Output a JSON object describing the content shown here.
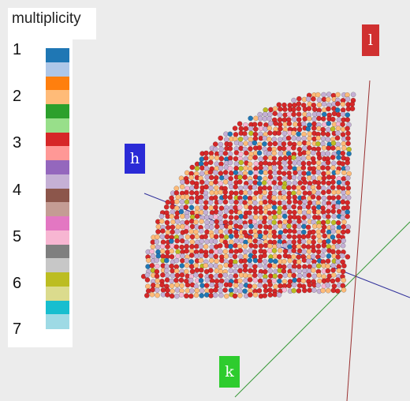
{
  "legend": {
    "title": "multiplicity",
    "numbers": [
      "1",
      "2",
      "3",
      "4",
      "5",
      "6",
      "7"
    ],
    "swatches": [
      "#1f77b4",
      "#aec7e8",
      "#ff7f0e",
      "#ffbb78",
      "#2ca02c",
      "#98df8a",
      "#d62728",
      "#ff9896",
      "#9467bd",
      "#c5b0d5",
      "#8c564b",
      "#c49c94",
      "#e377c2",
      "#f7b6d2",
      "#7f7f7f",
      "#c7c7c7",
      "#bcbd22",
      "#dbdb8d",
      "#17becf",
      "#9edae5"
    ]
  },
  "axes": {
    "h": {
      "label": "h",
      "color": "#2a2ad6",
      "line_color": "#2f2f9a"
    },
    "k": {
      "label": "k",
      "color": "#2ecc2e",
      "line_color": "#3a9a3a"
    },
    "l": {
      "label": "l",
      "color": "#d03030",
      "line_color": "#9a3030"
    }
  },
  "dominant_colors": [
    "#d62728",
    "#c5b0d5",
    "#ffbb78",
    "#1f77b4",
    "#bcbd22",
    "#f7b6d2"
  ]
}
